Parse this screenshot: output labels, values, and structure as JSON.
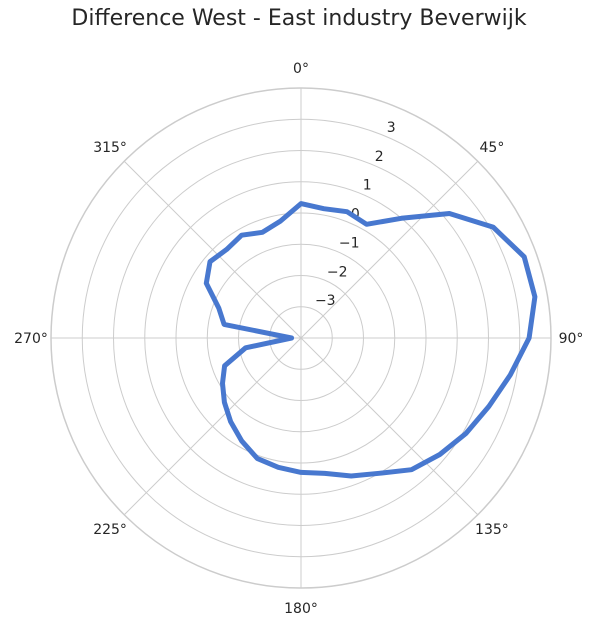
{
  "chart_data": {
    "type": "line",
    "projection": "polar",
    "title": "Difference West - East industry Beverwijk",
    "theta_direction": "clockwise",
    "theta_zero": "top",
    "angle_ticks": [
      "0°",
      "45°",
      "90°",
      "135°",
      "180°",
      "225°",
      "270°",
      "315°"
    ],
    "radial_ticks": [
      "−3",
      "−2",
      "−1",
      "0",
      "1",
      "2",
      "3"
    ],
    "rlim": [
      -4,
      4
    ],
    "grid": true,
    "line_color": "#4878cf",
    "grid_color": "#cccccc",
    "series": [
      {
        "x": [
          0,
          10,
          20,
          30,
          40,
          50,
          60,
          70,
          80,
          90,
          100,
          110,
          120,
          130,
          140,
          150,
          160,
          170,
          180,
          190,
          200,
          210,
          220,
          230,
          240,
          250,
          260,
          270,
          280,
          290,
          300,
          310,
          320,
          330,
          340,
          350
        ],
        "values": [
          0.3,
          0.2,
          0.3,
          0.2,
          1.0,
          2.2,
          3.1,
          3.6,
          3.6,
          3.3,
          2.8,
          2.4,
          2.1,
          1.8,
          1.5,
          1.0,
          0.7,
          0.4,
          0.3,
          0.2,
          0.1,
          -0.2,
          -0.5,
          -0.8,
          -1.1,
          -1.4,
          -2.2,
          -3.7,
          -1.5,
          -1.2,
          -0.5,
          -0.2,
          -0.3,
          -0.2,
          -0.4,
          -0.2
        ]
      }
    ]
  }
}
